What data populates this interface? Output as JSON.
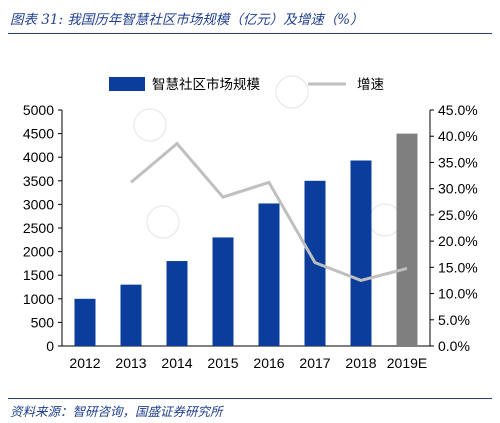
{
  "figure": {
    "title": "图表 31:  我国历年智慧社区市场规模（亿元）及增速（%）",
    "source": "资料来源：智研咨询，国盛证券研究所"
  },
  "colors": {
    "bar": "#0b3e9c",
    "bar_estimate": "#7f7f7f",
    "growth_line": "#bfbfbf",
    "title": "#1f3f8f"
  },
  "chart_data": {
    "type": "bar",
    "categories": [
      "2012",
      "2013",
      "2014",
      "2015",
      "2016",
      "2017",
      "2018",
      "2019E"
    ],
    "series": [
      {
        "name": "智慧社区市场规模",
        "type": "bar",
        "axis": "left",
        "values": [
          1000,
          1300,
          1800,
          2300,
          3020,
          3500,
          3930,
          4500
        ]
      },
      {
        "name": "增速",
        "type": "line",
        "axis": "right",
        "values": [
          null,
          31.2,
          38.6,
          28.4,
          31.2,
          15.9,
          12.5,
          14.8
        ]
      }
    ],
    "y_left": {
      "min": 0,
      "max": 5000,
      "ticks": [
        "0",
        "500",
        "1000",
        "1500",
        "2000",
        "2500",
        "3000",
        "3500",
        "4000",
        "4500",
        "5000"
      ]
    },
    "y_right": {
      "min": 0,
      "max": 45,
      "ticks": [
        "0.0%",
        "5.0%",
        "10.0%",
        "15.0%",
        "20.0%",
        "25.0%",
        "30.0%",
        "35.0%",
        "40.0%",
        "45.0%"
      ]
    },
    "estimate_index": 7,
    "legend": {
      "position": "top",
      "entries": [
        "智慧社区市场规模",
        "增速"
      ]
    },
    "grid": false
  }
}
